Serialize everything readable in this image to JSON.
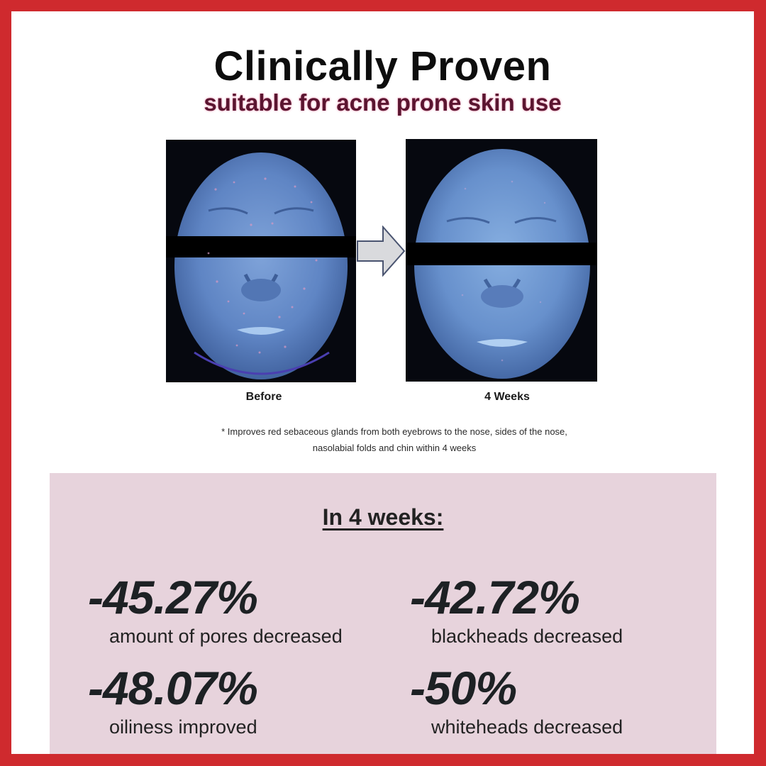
{
  "header": {
    "title": "Clinically Proven",
    "subtitle": "suitable for acne prone skin use",
    "accent_color": "#cf2a2e",
    "subtitle_glow_color": "#f29bb6"
  },
  "comparison": {
    "before_label": "Before",
    "after_label": "4 Weeks",
    "arrow_icon": "right-arrow-icon",
    "footnote_line1": "* Improves red sebaceous glands from both eyebrows to the nose, sides of the nose,",
    "footnote_line2": "nasolabial folds and chin within 4 weeks"
  },
  "results": {
    "heading": "In 4 weeks:",
    "panel_color": "#e7d3dc",
    "stats": [
      {
        "value": "-45.27%",
        "label": "amount of pores decreased"
      },
      {
        "value": "-42.72%",
        "label": "blackheads decreased"
      },
      {
        "value": "-48.07%",
        "label": "oiliness improved"
      },
      {
        "value": "-50%",
        "label": "whiteheads decreased"
      }
    ]
  }
}
